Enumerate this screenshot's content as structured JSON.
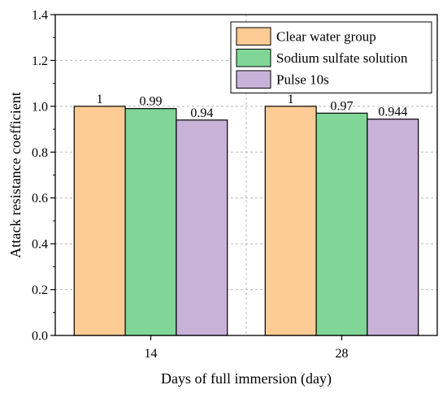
{
  "chart_data": {
    "type": "bar",
    "categories": [
      "14",
      "28"
    ],
    "series": [
      {
        "name": "Clear water group",
        "values": [
          1,
          1
        ],
        "labels": [
          "1",
          "1"
        ],
        "color": "#fdcb94"
      },
      {
        "name": "Sodium sulfate solution",
        "values": [
          0.99,
          0.97
        ],
        "labels": [
          "0.99",
          "0.97"
        ],
        "color": "#7fd696"
      },
      {
        "name": "Pulse 10s",
        "values": [
          0.94,
          0.944
        ],
        "labels": [
          "0.94",
          "0.944"
        ],
        "color": "#c9b2d8"
      }
    ],
    "xlabel": "Days of full immersion (day)",
    "ylabel": "Attack resistance coefficient",
    "ylim": [
      0,
      1.4
    ],
    "yticks": [
      "0.0",
      "0.2",
      "0.4",
      "0.6",
      "0.8",
      "1.0",
      "1.2",
      "1.4"
    ],
    "grid": true,
    "legend_position": "top-right"
  }
}
